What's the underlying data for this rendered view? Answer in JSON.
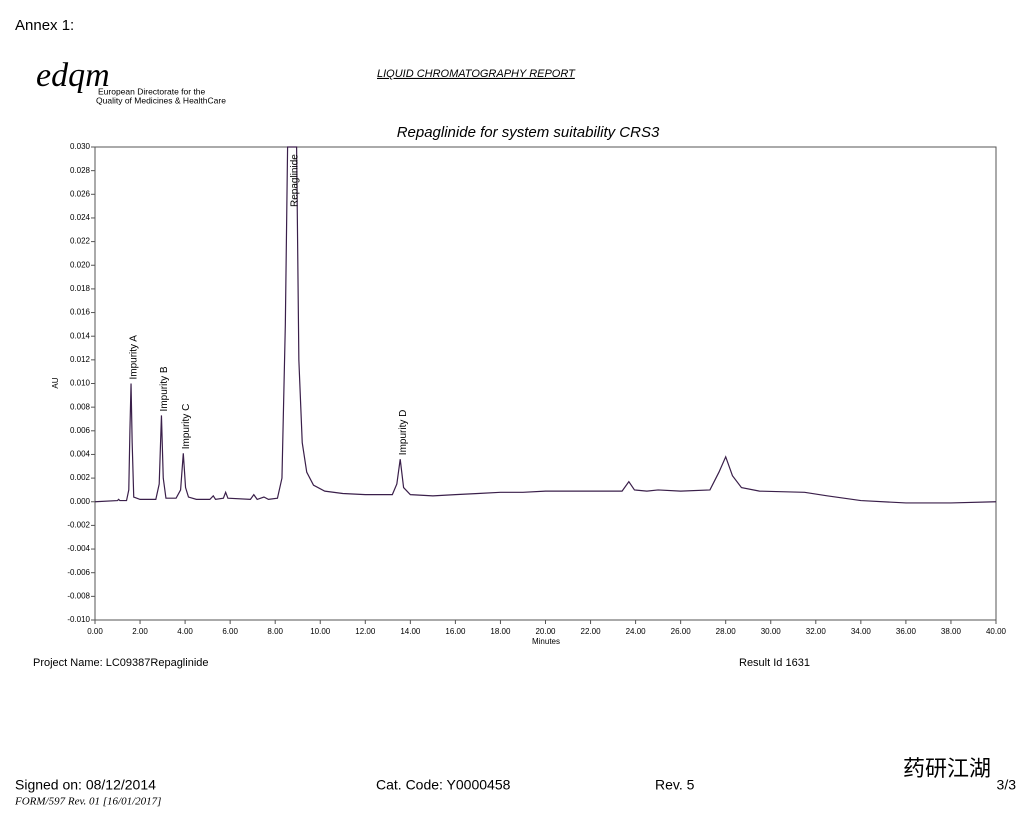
{
  "header": {
    "annex": "Annex 1:",
    "logo": "edqm",
    "org_line1": "European Directorate for the",
    "org_line2": "Quality of Medicines & HealthCare",
    "report_title": "LIQUID CHROMATOGRAPHY REPORT"
  },
  "chart_data": {
    "type": "line",
    "title": "Repaglinide for system suitability CRS3",
    "x_label": "Minutes",
    "y_label": "AU",
    "xlim": [
      0,
      40
    ],
    "ylim": [
      -0.01,
      0.03
    ],
    "xticks": [
      {
        "value": 0,
        "label": "0.00"
      },
      {
        "value": 2,
        "label": "2.00"
      },
      {
        "value": 4,
        "label": "4.00"
      },
      {
        "value": 6,
        "label": "6.00"
      },
      {
        "value": 8,
        "label": "8.00"
      },
      {
        "value": 10,
        "label": "10.00"
      },
      {
        "value": 12,
        "label": "12.00"
      },
      {
        "value": 14,
        "label": "14.00"
      },
      {
        "value": 16,
        "label": "16.00"
      },
      {
        "value": 18,
        "label": "18.00"
      },
      {
        "value": 20,
        "label": "20.00"
      },
      {
        "value": 22,
        "label": "22.00"
      },
      {
        "value": 24,
        "label": "24.00"
      },
      {
        "value": 26,
        "label": "26.00"
      },
      {
        "value": 28,
        "label": "28.00"
      },
      {
        "value": 30,
        "label": "30.00"
      },
      {
        "value": 32,
        "label": "32.00"
      },
      {
        "value": 34,
        "label": "34.00"
      },
      {
        "value": 36,
        "label": "36.00"
      },
      {
        "value": 38,
        "label": "38.00"
      },
      {
        "value": 40,
        "label": "40.00"
      }
    ],
    "yticks": [
      {
        "value": -0.01,
        "label": "-0.010"
      },
      {
        "value": -0.008,
        "label": "-0.008"
      },
      {
        "value": -0.006,
        "label": "-0.006"
      },
      {
        "value": -0.004,
        "label": "-0.004"
      },
      {
        "value": -0.002,
        "label": "-0.002"
      },
      {
        "value": 0,
        "label": "0.000"
      },
      {
        "value": 0.002,
        "label": "0.002"
      },
      {
        "value": 0.004,
        "label": "0.004"
      },
      {
        "value": 0.006,
        "label": "0.006"
      },
      {
        "value": 0.008,
        "label": "0.008"
      },
      {
        "value": 0.01,
        "label": "0.010"
      },
      {
        "value": 0.012,
        "label": "0.012"
      },
      {
        "value": 0.014,
        "label": "0.014"
      },
      {
        "value": 0.016,
        "label": "0.016"
      },
      {
        "value": 0.018,
        "label": "0.018"
      },
      {
        "value": 0.02,
        "label": "0.020"
      },
      {
        "value": 0.022,
        "label": "0.022"
      },
      {
        "value": 0.024,
        "label": "0.024"
      },
      {
        "value": 0.026,
        "label": "0.026"
      },
      {
        "value": 0.028,
        "label": "0.028"
      },
      {
        "value": 0.03,
        "label": "0.030"
      }
    ],
    "color": "#3a1f4a",
    "x": [
      0,
      1.0,
      1.05,
      1.1,
      1.4,
      1.5,
      1.55,
      1.6,
      1.65,
      1.72,
      2.0,
      2.7,
      2.85,
      2.95,
      3.03,
      3.15,
      3.6,
      3.8,
      3.92,
      4.02,
      4.15,
      4.5,
      5.1,
      5.25,
      5.35,
      5.7,
      5.8,
      5.9,
      6.9,
      7.05,
      7.2,
      7.5,
      7.7,
      8.1,
      8.3,
      8.45,
      8.55,
      8.95,
      9.05,
      9.2,
      9.4,
      9.7,
      10.2,
      11,
      12,
      13.2,
      13.4,
      13.55,
      13.7,
      14,
      15,
      16,
      17,
      18,
      19,
      20,
      22,
      23.4,
      23.7,
      23.95,
      24.5,
      25,
      26,
      27.3,
      27.7,
      28.0,
      28.3,
      28.7,
      29.5,
      31.5,
      32.5,
      34,
      36,
      38,
      40
    ],
    "values": [
      0,
      0.0001,
      0.0002,
      0.0001,
      0.0001,
      0.001,
      0.006,
      0.01,
      0.005,
      0.0004,
      0.0002,
      0.0002,
      0.0015,
      0.0073,
      0.002,
      0.0003,
      0.0003,
      0.001,
      0.0041,
      0.0012,
      0.0004,
      0.0002,
      0.0002,
      0.0005,
      0.0002,
      0.0003,
      0.0008,
      0.0003,
      0.0002,
      0.0006,
      0.0002,
      0.0004,
      0.0002,
      0.0003,
      0.002,
      0.015,
      0.03,
      0.03,
      0.012,
      0.005,
      0.0025,
      0.0014,
      0.0009,
      0.0007,
      0.0006,
      0.0006,
      0.0015,
      0.0036,
      0.0012,
      0.0006,
      0.0005,
      0.0006,
      0.0007,
      0.0008,
      0.0008,
      0.0009,
      0.0009,
      0.0009,
      0.0017,
      0.001,
      0.0009,
      0.001,
      0.0009,
      0.001,
      0.0025,
      0.0038,
      0.0022,
      0.0012,
      0.0009,
      0.0008,
      0.0005,
      0.0001,
      -0.0001,
      -0.0001,
      0
    ],
    "annotations": [
      {
        "text": "Impurity A",
        "x": 1.6,
        "y": 0.01
      },
      {
        "text": "Impurity B",
        "x": 2.95,
        "y": 0.0073
      },
      {
        "text": "Impurity C",
        "x": 3.92,
        "y": 0.0041
      },
      {
        "text": "Repaglinide",
        "x": 8.75,
        "y": 0.03
      },
      {
        "text": "Impurity D",
        "x": 13.55,
        "y": 0.0036
      }
    ]
  },
  "info": {
    "project": "Project Name: LC09387Repaglinide",
    "result": "Result Id 1631"
  },
  "footer": {
    "signed": "Signed on: 08/12/2014",
    "cat_code": "Cat. Code: Y0000458",
    "rev": "Rev. 5",
    "page": "3/3",
    "form": "FORM/597 Rev. 01 [16/01/2017]",
    "watermark": "药研江湖"
  }
}
